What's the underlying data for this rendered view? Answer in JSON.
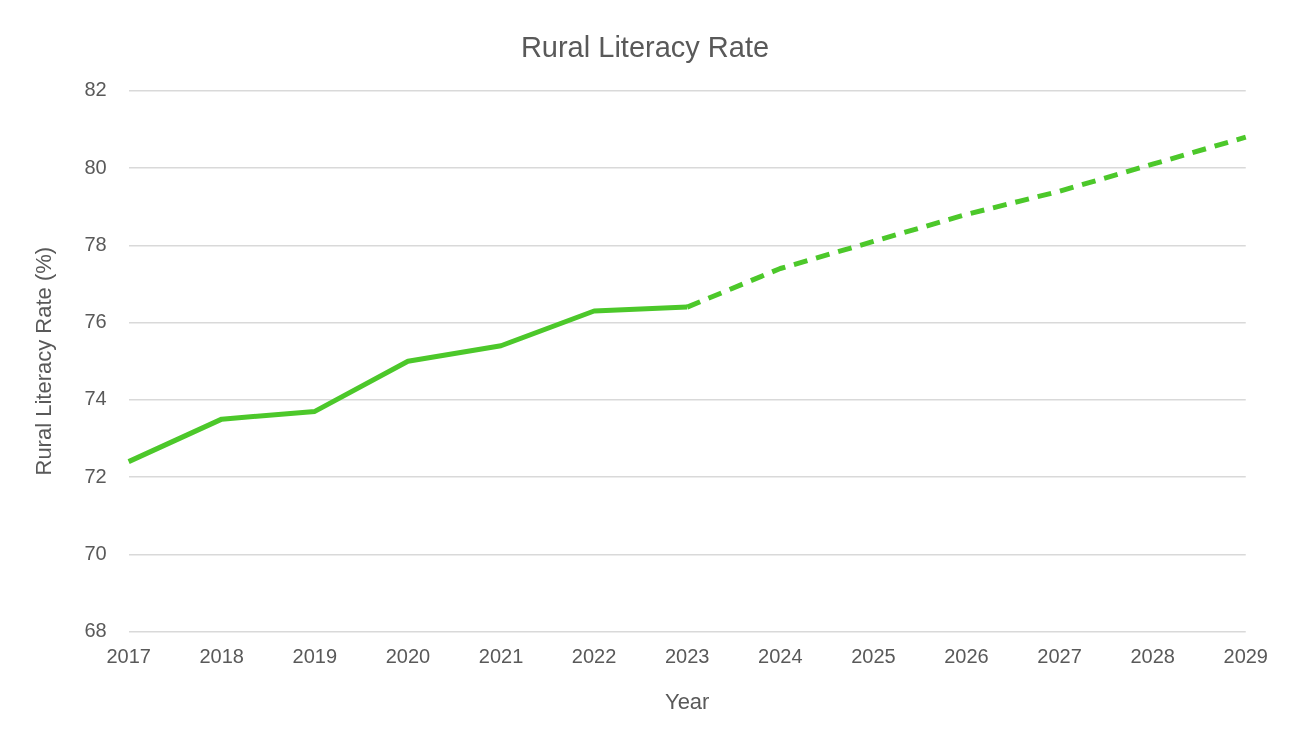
{
  "chart_data": {
    "type": "line",
    "title": "Rural Literacy Rate",
    "xlabel": "Year",
    "ylabel": "Rural Literacy Rate (%)",
    "categories": [
      "2017",
      "2018",
      "2019",
      "2020",
      "2021",
      "2022",
      "2023",
      "2024",
      "2025",
      "2026",
      "2027",
      "2028",
      "2029"
    ],
    "series": [
      {
        "color": "#4cc82a",
        "line_style": "solid",
        "values": [
          72.4,
          73.5,
          73.7,
          75.0,
          75.4,
          76.3,
          76.4,
          null,
          null,
          null,
          null,
          null,
          null
        ]
      },
      {
        "color": "#4cc82a",
        "line_style": "dashed",
        "values": [
          null,
          null,
          null,
          null,
          null,
          null,
          76.4,
          77.4,
          78.1,
          78.8,
          79.4,
          80.1,
          80.8
        ]
      }
    ],
    "ylim": [
      68,
      82
    ],
    "yticks": [
      68,
      70,
      72,
      74,
      76,
      78,
      80,
      82
    ],
    "grid": "y",
    "legend": false,
    "marker": "none"
  }
}
